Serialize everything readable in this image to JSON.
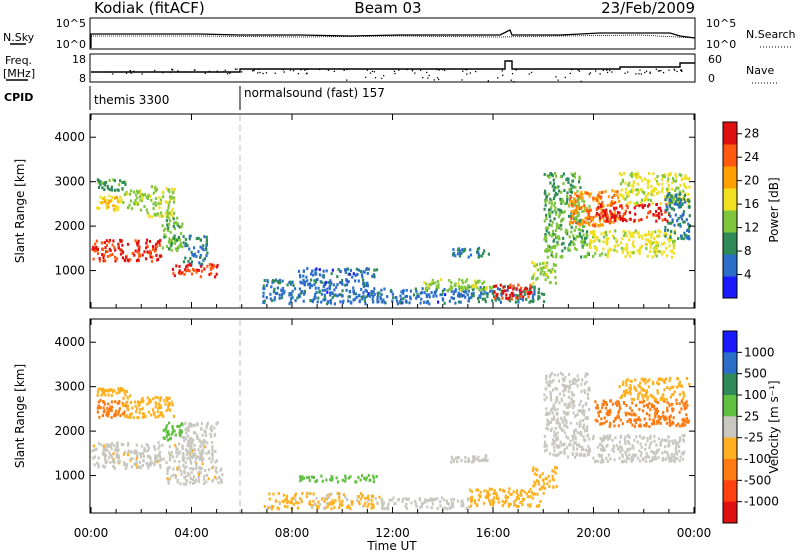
{
  "header": {
    "station": "Kodiak (fitACF)",
    "beam": "Beam 03",
    "date": "23/Feb/2009"
  },
  "noise_panel": {
    "left_label": "N.Sky",
    "right_label": "N.Search",
    "left_ticks": [
      "10^5",
      "10^0"
    ],
    "right_ticks": [
      "10^5",
      "10^0"
    ]
  },
  "freq_panel": {
    "left_label_line1": "Freq.",
    "left_label_line2": "[MHz]",
    "right_label": "Nave",
    "left_ticks": [
      "18",
      "8"
    ],
    "right_ticks": [
      "60",
      "0"
    ]
  },
  "cpid_panel": {
    "label": "CPID",
    "programs": [
      {
        "name": "themis 3300",
        "start_hour": 0
      },
      {
        "name": "normalsound (fast) 157",
        "start_hour": 6
      }
    ]
  },
  "chart_data": [
    {
      "type": "heatmap",
      "panel": "power",
      "ylabel": "Slant Range [km]",
      "xlabel": "Time UT",
      "x_ticks": [
        "00:00",
        "04:00",
        "08:00",
        "12:00",
        "16:00",
        "20:00",
        "00:00"
      ],
      "xlim_hours": [
        0,
        24
      ],
      "ylim": [
        180,
        4500
      ],
      "y_ticks": [
        1000,
        2000,
        3000,
        4000
      ],
      "colorbar": {
        "label": "Power [dB]",
        "tick_values": [
          4,
          8,
          12,
          16,
          20,
          24,
          28
        ],
        "range": [
          0,
          30
        ],
        "colors": [
          "#1a1aff",
          "#2a6ec8",
          "#2e8b57",
          "#80c63c",
          "#f0e020",
          "#ffa000",
          "#ff5a10",
          "#e01010"
        ]
      },
      "regions": [
        {
          "t0": 0.2,
          "t1": 1.2,
          "r0": 2300,
          "r1": 2700,
          "level": 18
        },
        {
          "t0": 1.2,
          "t1": 2.2,
          "r0": 2350,
          "r1": 2800,
          "level": 14
        },
        {
          "t0": 2.2,
          "t1": 3.3,
          "r0": 2200,
          "r1": 2900,
          "level": 14
        },
        {
          "t0": 0.2,
          "t1": 1.4,
          "r0": 2800,
          "r1": 3050,
          "level": 10
        },
        {
          "t0": 0.0,
          "t1": 2.8,
          "r0": 1200,
          "r1": 1700,
          "level": 27
        },
        {
          "t0": 2.8,
          "t1": 3.6,
          "r0": 1400,
          "r1": 2200,
          "level": 12
        },
        {
          "t0": 3.6,
          "t1": 4.6,
          "r0": 1100,
          "r1": 1800,
          "level": 8
        },
        {
          "t0": 3.2,
          "t1": 5.0,
          "r0": 850,
          "r1": 1150,
          "level": 26
        },
        {
          "t0": 6.8,
          "t1": 11.0,
          "r0": 250,
          "r1": 800,
          "level": 6
        },
        {
          "t0": 11.0,
          "t1": 15.0,
          "r0": 250,
          "r1": 600,
          "level": 6
        },
        {
          "t0": 15.0,
          "t1": 18.0,
          "r0": 280,
          "r1": 650,
          "level": 8
        },
        {
          "t0": 8.2,
          "t1": 11.5,
          "r0": 850,
          "r1": 1050,
          "level": 6
        },
        {
          "t0": 14.3,
          "t1": 15.8,
          "r0": 1300,
          "r1": 1500,
          "level": 7
        },
        {
          "t0": 13.2,
          "t1": 16.0,
          "r0": 550,
          "r1": 800,
          "level": 14
        },
        {
          "t0": 16.0,
          "t1": 17.5,
          "r0": 350,
          "r1": 700,
          "level": 28
        },
        {
          "t0": 17.5,
          "t1": 18.5,
          "r0": 700,
          "r1": 1200,
          "level": 14
        },
        {
          "t0": 18.0,
          "t1": 19.8,
          "r0": 1300,
          "r1": 2600,
          "level": 12
        },
        {
          "t0": 18.0,
          "t1": 19.5,
          "r0": 2600,
          "r1": 3200,
          "level": 10
        },
        {
          "t0": 19.0,
          "t1": 21.0,
          "r0": 2000,
          "r1": 2800,
          "level": 22
        },
        {
          "t0": 20.0,
          "t1": 23.0,
          "r0": 2100,
          "r1": 2500,
          "level": 27
        },
        {
          "t0": 19.8,
          "t1": 23.2,
          "r0": 1300,
          "r1": 1900,
          "level": 16
        },
        {
          "t0": 21.0,
          "t1": 23.8,
          "r0": 2500,
          "r1": 3200,
          "level": 16
        },
        {
          "t0": 22.8,
          "t1": 23.8,
          "r0": 1700,
          "r1": 2800,
          "level": 8
        }
      ]
    },
    {
      "type": "heatmap",
      "panel": "velocity",
      "ylabel": "Slant Range [km]",
      "xlabel": "Time UT",
      "x_ticks": [
        "00:00",
        "04:00",
        "08:00",
        "12:00",
        "16:00",
        "20:00",
        "00:00"
      ],
      "xlim_hours": [
        0,
        24
      ],
      "ylim": [
        180,
        4500
      ],
      "y_ticks": [
        1000,
        2000,
        3000,
        4000
      ],
      "colorbar": {
        "label": "Velocity [m s⁻¹]",
        "tick_labels": [
          "1000",
          "500",
          "100",
          "25",
          "-25",
          "-100",
          "-500",
          "-1000"
        ],
        "colors": [
          "#1a1aff",
          "#2a6ec8",
          "#2e8b57",
          "#60c040",
          "#c8c8c0",
          "#ffb020",
          "#ff7a10",
          "#ff4010",
          "#e01010"
        ]
      },
      "regions": [
        {
          "t0": 0.0,
          "t1": 4.5,
          "r0": 1150,
          "r1": 1750,
          "level": -5
        },
        {
          "t0": 3.0,
          "t1": 5.2,
          "r0": 800,
          "r1": 1200,
          "level": -5
        },
        {
          "t0": 3.6,
          "t1": 5.0,
          "r0": 1300,
          "r1": 2200,
          "level": 0
        },
        {
          "t0": 0.2,
          "t1": 1.5,
          "r0": 2300,
          "r1": 2700,
          "level": -150
        },
        {
          "t0": 1.2,
          "t1": 3.3,
          "r0": 2300,
          "r1": 2800,
          "level": -60
        },
        {
          "t0": 0.2,
          "t1": 1.4,
          "r0": 2800,
          "r1": 3000,
          "level": -60
        },
        {
          "t0": 2.8,
          "t1": 3.6,
          "r0": 1800,
          "r1": 2200,
          "level": 60
        },
        {
          "t0": 6.8,
          "t1": 11.5,
          "r0": 250,
          "r1": 600,
          "level": -40
        },
        {
          "t0": 8.2,
          "t1": 11.5,
          "r0": 850,
          "r1": 1000,
          "level": 60
        },
        {
          "t0": 11.5,
          "t1": 15.0,
          "r0": 250,
          "r1": 500,
          "level": 0
        },
        {
          "t0": 14.3,
          "t1": 15.8,
          "r0": 1300,
          "r1": 1450,
          "level": 0
        },
        {
          "t0": 15.0,
          "t1": 18.0,
          "r0": 300,
          "r1": 700,
          "level": -60
        },
        {
          "t0": 17.5,
          "t1": 18.5,
          "r0": 700,
          "r1": 1200,
          "level": -60
        },
        {
          "t0": 18.0,
          "t1": 19.8,
          "r0": 1400,
          "r1": 3300,
          "level": 0
        },
        {
          "t0": 19.8,
          "t1": 23.6,
          "r0": 1300,
          "r1": 1900,
          "level": 0
        },
        {
          "t0": 20.0,
          "t1": 23.8,
          "r0": 2100,
          "r1": 2700,
          "level": -300
        },
        {
          "t0": 21.0,
          "t1": 23.8,
          "r0": 2700,
          "r1": 3200,
          "level": -60
        }
      ]
    }
  ]
}
